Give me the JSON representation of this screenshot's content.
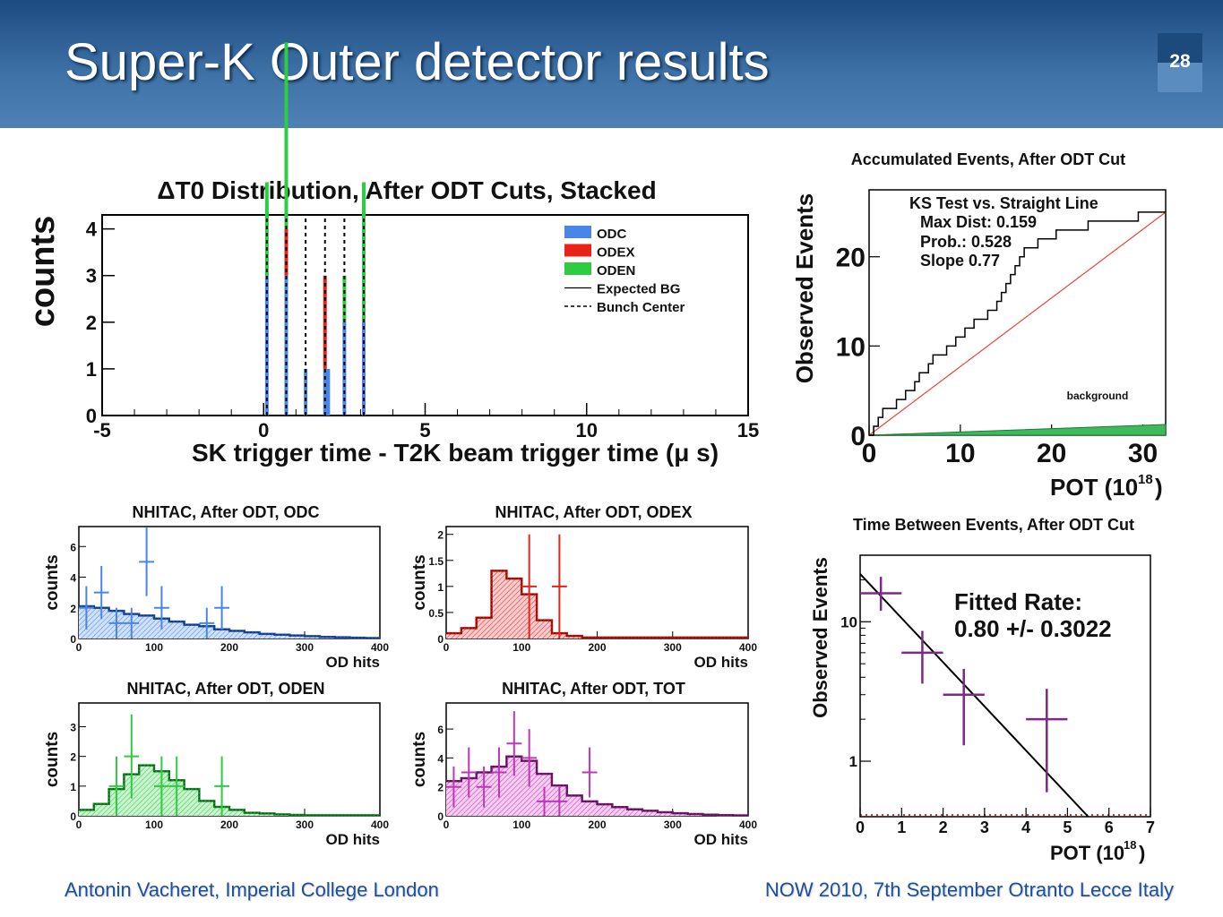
{
  "slide": {
    "title": "Super-K Outer detector results",
    "page_number": "28",
    "footer_left": "Antonin Vacheret, Imperial College London",
    "footer_right": "NOW 2010, 7th September Otranto Lecce Italy",
    "colors": {
      "header_top": "#1d4b82",
      "header_bottom": "#4f81b5",
      "footer_text": "#1f4e9b"
    }
  },
  "chart_data": [
    {
      "id": "dt0",
      "type": "bar",
      "title": "ΔT0 Distribution, After ODT Cuts, Stacked",
      "xlabel": "SK trigger time - T2K beam trigger time (μ s)",
      "ylabel": "counts",
      "xlim": [
        -5,
        15
      ],
      "ylim": [
        0,
        4.3
      ],
      "xticks": [
        "-5",
        "0",
        "5",
        "10",
        "15"
      ],
      "yticks": [
        "0",
        "1",
        "2",
        "3",
        "4"
      ],
      "legend": [
        "ODC",
        "ODEX",
        "ODEN",
        "Expected BG",
        "Bunch Center"
      ],
      "legend_position": "top-right",
      "bunch_centers": [
        0.1,
        0.7,
        1.3,
        1.9,
        2.5,
        3.1
      ],
      "series": [
        {
          "name": "ODC",
          "color": "#4a86e8",
          "x": [
            0.1,
            0.7,
            1.3,
            1.9,
            2.0,
            2.5,
            3.1
          ],
          "values": [
            3,
            3,
            1,
            1,
            1,
            2,
            2
          ]
        },
        {
          "name": "ODEX",
          "color": "#e8231a",
          "x": [
            0.7,
            1.9
          ],
          "values": [
            1,
            2
          ]
        },
        {
          "name": "ODEN",
          "color": "#2ecc40",
          "x": [
            0.1,
            0.7,
            2.5,
            3.1
          ],
          "values": [
            2,
            4,
            1,
            3
          ]
        }
      ]
    },
    {
      "id": "accum",
      "type": "line",
      "title": "Accumulated Events, After ODT Cut",
      "xlabel": "POT (10",
      "xlabel_sup": "18",
      "xlabel_tail": ")",
      "ylabel": "Observed Events",
      "xlim": [
        0,
        32.5
      ],
      "ylim": [
        0,
        27.5
      ],
      "xticks": [
        "0",
        "10",
        "20",
        "30"
      ],
      "yticks": [
        "0",
        "10",
        "20"
      ],
      "annotation": [
        "KS Test vs. Straight Line",
        "Max Dist: 0.159",
        "Prob.: 0.528",
        "Slope 0.77"
      ],
      "band_label": "background",
      "line": {
        "x": [
          0,
          32.5
        ],
        "y": [
          0,
          25
        ]
      },
      "steps_x": [
        0,
        0.5,
        1,
        1.5,
        3,
        4,
        5,
        5.5,
        6.5,
        7,
        8.5,
        9.5,
        10.5,
        11.5,
        13,
        14,
        14.5,
        15,
        15.5,
        16,
        16.5,
        17,
        17.5,
        18.5,
        19.5,
        20.5,
        22,
        24,
        26,
        28,
        29.5,
        30.5,
        31.5,
        32.5
      ],
      "steps_y": [
        0,
        1,
        2,
        3,
        4,
        5,
        6,
        7,
        8,
        9,
        10,
        11,
        12,
        13,
        14,
        15,
        16,
        17,
        18,
        19,
        20,
        21,
        21,
        22,
        22,
        23,
        23,
        24,
        24,
        24,
        25,
        25,
        25,
        25
      ],
      "background": {
        "x": [
          0,
          32.5
        ],
        "y": [
          0,
          1.2
        ]
      }
    },
    {
      "id": "nhit_odc",
      "type": "bar",
      "title": "NHITAC, After ODT, ODC",
      "xlabel": "OD hits",
      "ylabel": "counts",
      "xlim": [
        0,
        400
      ],
      "ylim": [
        0,
        7.3
      ],
      "xticks": [
        "0",
        "100",
        "200",
        "300",
        "400"
      ],
      "yticks": [
        "0",
        "2",
        "4",
        "6"
      ],
      "color": "#4a86e8",
      "hist_x": [
        0,
        20,
        40,
        60,
        80,
        100,
        120,
        140,
        160,
        180,
        200,
        220,
        240,
        260,
        280,
        300,
        320,
        340,
        360,
        380,
        400
      ],
      "hist_y": [
        2.1,
        2.0,
        1.8,
        1.6,
        1.5,
        1.3,
        1.1,
        0.9,
        0.8,
        0.6,
        0.5,
        0.4,
        0.3,
        0.25,
        0.2,
        0.15,
        0.1,
        0.08,
        0.05,
        0.03
      ],
      "points": [
        {
          "x": 10,
          "y": 2
        },
        {
          "x": 30,
          "y": 3
        },
        {
          "x": 50,
          "y": 1
        },
        {
          "x": 70,
          "y": 1
        },
        {
          "x": 90,
          "y": 5
        },
        {
          "x": 110,
          "y": 2
        },
        {
          "x": 170,
          "y": 1
        },
        {
          "x": 190,
          "y": 2
        }
      ]
    },
    {
      "id": "nhit_odex",
      "type": "bar",
      "title": "NHITAC, After ODT, ODEX",
      "xlabel": "OD hits",
      "ylabel": "counts",
      "xlim": [
        0,
        400
      ],
      "ylim": [
        0,
        2.15
      ],
      "xticks": [
        "0",
        "100",
        "200",
        "300",
        "400"
      ],
      "yticks": [
        "0",
        "0.5",
        "1",
        "1.5",
        "2"
      ],
      "color": "#e8231a",
      "hist_x": [
        0,
        20,
        40,
        60,
        80,
        100,
        120,
        140,
        160,
        180,
        200,
        220,
        240,
        260,
        280,
        300,
        320,
        340,
        360,
        380,
        400
      ],
      "hist_y": [
        0.1,
        0.2,
        0.4,
        1.3,
        1.15,
        0.85,
        0.35,
        0.1,
        0.05,
        0.02,
        0.02,
        0.02,
        0.02,
        0.02,
        0.02,
        0.02,
        0.02,
        0.02,
        0.02,
        0.02
      ],
      "points": [
        {
          "x": 110,
          "y": 1
        },
        {
          "x": 150,
          "y": 1
        }
      ]
    },
    {
      "id": "nhit_oden",
      "type": "bar",
      "title": "NHITAC, After ODT, ODEN",
      "xlabel": "OD hits",
      "ylabel": "counts",
      "xlim": [
        0,
        400
      ],
      "ylim": [
        0,
        3.8
      ],
      "xticks": [
        "0",
        "100",
        "200",
        "300",
        "400"
      ],
      "yticks": [
        "0",
        "1",
        "2",
        "3"
      ],
      "color": "#2ecc40",
      "hist_x": [
        0,
        20,
        40,
        60,
        80,
        100,
        120,
        140,
        160,
        180,
        200,
        220,
        240,
        260,
        280,
        300,
        320,
        340,
        360,
        380,
        400
      ],
      "hist_y": [
        0.2,
        0.4,
        0.9,
        1.4,
        1.7,
        1.5,
        1.2,
        0.9,
        0.5,
        0.3,
        0.2,
        0.1,
        0.08,
        0.05,
        0.03,
        0.02,
        0.02,
        0.02,
        0.02,
        0.02
      ],
      "points": [
        {
          "x": 50,
          "y": 1
        },
        {
          "x": 70,
          "y": 2
        },
        {
          "x": 110,
          "y": 1
        },
        {
          "x": 130,
          "y": 1
        },
        {
          "x": 190,
          "y": 1
        }
      ]
    },
    {
      "id": "nhit_tot",
      "type": "bar",
      "title": "NHITAC, After ODT, TOT",
      "xlabel": "OD hits",
      "ylabel": "counts",
      "xlim": [
        0,
        400
      ],
      "ylim": [
        0,
        7.8
      ],
      "xticks": [
        "0",
        "100",
        "200",
        "300",
        "400"
      ],
      "yticks": [
        "0",
        "2",
        "4",
        "6"
      ],
      "color": "#c036b8",
      "hist_x": [
        0,
        20,
        40,
        60,
        80,
        100,
        120,
        140,
        160,
        180,
        200,
        220,
        240,
        260,
        280,
        300,
        320,
        340,
        360,
        380,
        400
      ],
      "hist_y": [
        2.4,
        2.6,
        3.0,
        3.4,
        4.1,
        3.8,
        2.9,
        2.1,
        1.4,
        1.0,
        0.8,
        0.6,
        0.45,
        0.35,
        0.25,
        0.18,
        0.12,
        0.08,
        0.05,
        0.03
      ],
      "points": [
        {
          "x": 10,
          "y": 2
        },
        {
          "x": 30,
          "y": 3
        },
        {
          "x": 50,
          "y": 2
        },
        {
          "x": 70,
          "y": 3
        },
        {
          "x": 90,
          "y": 5
        },
        {
          "x": 110,
          "y": 4
        },
        {
          "x": 130,
          "y": 1
        },
        {
          "x": 150,
          "y": 1
        },
        {
          "x": 190,
          "y": 3
        }
      ]
    },
    {
      "id": "timebetween",
      "type": "scatter",
      "title": "Time Between Events, After ODT Cut",
      "xlabel": "POT (10",
      "xlabel_sup": "18",
      "xlabel_tail": ")",
      "ylabel": "Observed Events",
      "xlim": [
        0,
        7
      ],
      "ylim": [
        0.4,
        30
      ],
      "log_y": true,
      "xticks": [
        "0",
        "1",
        "2",
        "3",
        "4",
        "5",
        "6",
        "7"
      ],
      "yticks": [
        "1",
        "10"
      ],
      "annotation": [
        "Fitted Rate:",
        "0.80 +/- 0.3022"
      ],
      "fit": {
        "x": [
          0,
          5.5
        ],
        "y": [
          22,
          0.4
        ]
      },
      "points": [
        {
          "x": 0.5,
          "y": 16,
          "ylo": 12,
          "yhi": 21
        },
        {
          "x": 1.5,
          "y": 6,
          "ylo": 3.6,
          "yhi": 8.6
        },
        {
          "x": 2.5,
          "y": 3,
          "ylo": 1.3,
          "yhi": 4.6
        },
        {
          "x": 4.5,
          "y": 2,
          "ylo": 0.6,
          "yhi": 3.3
        }
      ]
    }
  ]
}
